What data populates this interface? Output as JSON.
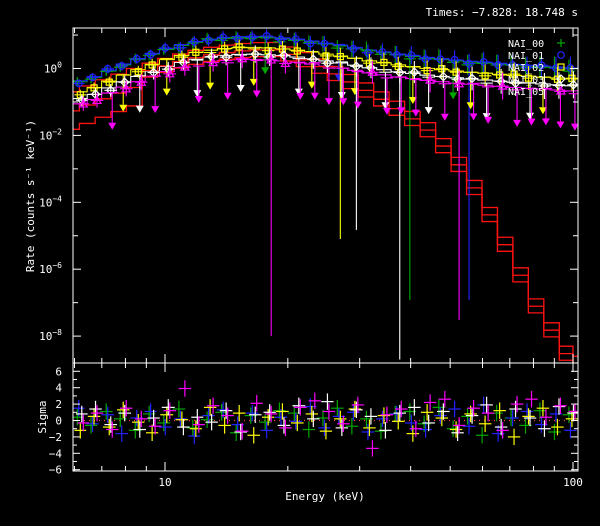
{
  "title": "Times: −7.828: 18.748 s",
  "legend": {
    "items": [
      {
        "label": "NAI_00",
        "marker": "plus",
        "color": "#00a800"
      },
      {
        "label": "NAI_01",
        "marker": "circle",
        "color": "#2222ff"
      },
      {
        "label": "NAI_02",
        "marker": "square",
        "color": "#ffff00"
      },
      {
        "label": "NAI_03",
        "marker": "diamond",
        "color": "#ffffff"
      },
      {
        "label": "NAI_05",
        "marker": "triangle",
        "color": "#ff00ff"
      }
    ]
  },
  "colors": {
    "frame": "#ffffff",
    "background": "#000000",
    "model_red": "#ff1212",
    "zero_line": "#ff4040"
  },
  "chart_data": [
    {
      "type": "scatter",
      "title": "",
      "xlabel": "Energy (keV)",
      "ylabel": "Rate (counts s⁻¹ keV⁻¹)",
      "xscale": "log",
      "yscale": "log",
      "xlim": [
        5.9,
        103.4
      ],
      "ylim": [
        2.5e-10,
        16
      ],
      "grid": false,
      "xticks_major": [
        10,
        100
      ],
      "xticks_minor": [
        6,
        7,
        8,
        9,
        20,
        30,
        40,
        50,
        60,
        70,
        80,
        90
      ],
      "ytick_exponents_labeled": [
        0,
        -2,
        -4,
        -6,
        -8
      ],
      "ytick_exponents_minor": [
        1,
        -1,
        -3,
        -5,
        -7
      ],
      "energies": [
        6.2,
        6.7,
        7.3,
        7.9,
        8.6,
        9.3,
        10.1,
        11.0,
        11.9,
        12.9,
        14.0,
        15.2,
        16.5,
        17.9,
        19.4,
        21.1,
        22.9,
        24.8,
        26.9,
        29.2,
        31.7,
        34.4,
        37.3,
        40.5,
        43.9,
        47.7,
        51.7,
        56.1,
        60.9,
        66.1,
        71.7,
        77.8,
        84.4,
        91.6,
        99.4
      ],
      "base_rate": [
        0.12,
        0.16,
        0.25,
        0.38,
        0.55,
        0.8,
        1.1,
        1.45,
        1.8,
        2.1,
        2.35,
        2.5,
        2.55,
        2.45,
        2.3,
        2.1,
        1.85,
        1.6,
        1.4,
        1.2,
        1.0,
        0.88,
        0.76,
        0.68,
        0.6,
        0.55,
        0.5,
        0.46,
        0.43,
        0.4,
        0.37,
        0.35,
        0.33,
        0.31,
        0.29
      ],
      "jitter_table": [
        1.08,
        0.94,
        1.02,
        0.9,
        1.12,
        0.97,
        1.05,
        0.88,
        1.0,
        1.15,
        0.92,
        1.04,
        0.96,
        1.1,
        0.85,
        1.03,
        0.98,
        1.07,
        0.91,
        1.0,
        1.12,
        0.94,
        1.06,
        0.89,
        1.02,
        1.1,
        0.95,
        0.87,
        1.04,
        0.99,
        1.08,
        0.93,
        1.01,
        1.06,
        0.9
      ],
      "detectors": [
        {
          "name": "NAI_00",
          "color": "#00a800",
          "marker": "plus",
          "scale": 3.2,
          "jitter_offset": 0,
          "dx": -3,
          "ebar": 4,
          "upper_limits": [
            13,
            26
          ],
          "deep_error_bars": [
            {
              "ch": 23,
              "to_rate": 1.2e-07
            }
          ]
        },
        {
          "name": "NAI_01",
          "color": "#2222ff",
          "marker": "circle",
          "scale": 3.4,
          "jitter_offset": 7,
          "dx": -1.5,
          "ebar": 4,
          "upper_limits": [
            18
          ],
          "deep_error_bars": [
            {
              "ch": 27,
              "to_rate": 1.2e-07
            }
          ]
        },
        {
          "name": "NAI_02",
          "color": "#ffff00",
          "marker": "square",
          "scale": 1.6,
          "jitter_offset": 14,
          "dx": 0,
          "ebar": 5,
          "upper_limits": [
            3,
            6,
            9,
            12,
            16,
            19,
            23,
            27,
            32
          ],
          "deep_error_bars": [
            {
              "ch": 18,
              "to_rate": 8e-06
            }
          ]
        },
        {
          "name": "NAI_03",
          "color": "#ffffff",
          "marker": "diamond",
          "scale": 1.0,
          "jitter_offset": 21,
          "dx": 1.5,
          "ebar": 6,
          "upper_limits": [
            4,
            8,
            11,
            15,
            18,
            21,
            24,
            28,
            31
          ],
          "deep_error_bars": [
            {
              "ch": 19,
              "to_rate": 1.5e-05
            },
            {
              "ch": 22,
              "to_rate": 2e-09
            }
          ]
        },
        {
          "name": "NAI_05",
          "color": "#ff00ff",
          "marker": "triangle",
          "scale": 0.7,
          "jitter_offset": 28,
          "dx": 3,
          "ebar": 7,
          "upper_limits": [
            2,
            5,
            8,
            10,
            12,
            15,
            16,
            17,
            18,
            19,
            21,
            22,
            23,
            25,
            27,
            28,
            30,
            31,
            32,
            33,
            34
          ],
          "deep_error_bars": [
            {
              "ch": 13,
              "to_rate": 1e-08
            },
            {
              "ch": 26,
              "to_rate": 3e-08
            }
          ]
        }
      ],
      "model": {
        "color": "#ff1212",
        "low_e_threshold": 9,
        "colored_line_factor": 1.05,
        "base": [
          [
            5.9,
            0.2
          ],
          [
            6.45,
            0.3
          ],
          [
            7.05,
            0.46
          ],
          [
            7.7,
            0.68
          ],
          [
            8.4,
            1.0
          ],
          [
            9.2,
            1.45
          ],
          [
            10.0,
            2.0
          ],
          [
            10.9,
            2.7
          ],
          [
            11.9,
            3.5
          ],
          [
            13.0,
            4.3
          ],
          [
            14.2,
            5.0
          ],
          [
            15.5,
            5.6
          ],
          [
            16.9,
            5.95
          ],
          [
            18.4,
            6.0
          ],
          [
            20.1,
            4.4
          ],
          [
            21.9,
            3.0
          ],
          [
            23.9,
            1.9
          ],
          [
            26.1,
            1.15
          ],
          [
            28.5,
            0.66
          ],
          [
            31.1,
            0.37
          ],
          [
            33.9,
            0.2
          ],
          [
            37.0,
            0.105
          ],
          [
            40.4,
            0.052
          ],
          [
            44.1,
            0.024
          ],
          [
            48.1,
            0.008
          ],
          [
            52.5,
            0.0022
          ],
          [
            57.3,
            0.00045
          ],
          [
            62.5,
            7e-05
          ],
          [
            68.2,
            9e-06
          ],
          [
            74.4,
            1.1e-06
          ],
          [
            81.2,
            1.3e-07
          ],
          [
            88.6,
            2.5e-08
          ],
          [
            96.7,
            5e-09
          ],
          [
            103.4,
            2.5e-09
          ]
        ],
        "lines": [
          {
            "scale": 1.0,
            "low_e_factor": 1.0
          },
          {
            "scale": 0.6,
            "low_e_factor": 0.45
          },
          {
            "scale": 0.38,
            "low_e_factor": 0.2
          }
        ]
      }
    },
    {
      "type": "scatter",
      "ylabel": "Sigma",
      "ylim": [
        -6.5,
        6.9
      ],
      "yticks_labeled": [
        -6,
        -4,
        -2,
        0,
        2,
        4,
        6
      ],
      "zero_line": true,
      "series": [
        {
          "name": "NAI_00",
          "color": "#00a800",
          "values": [
            0.4,
            -0.6,
            1.1,
            0.2,
            -1.2,
            0.8,
            -0.3,
            1.4,
            -0.9,
            0.1,
            1.0,
            -1.5,
            0.6,
            -0.2,
            1.2,
            0.9,
            -1.1,
            0.3,
            1.5,
            -0.7,
            0.2,
            -1.3,
            0.8,
            1.1,
            -0.4,
            1.6,
            -1.0,
            0.5,
            -1.8,
            0.9,
            0.3,
            -0.6,
            1.2,
            -1.4,
            0.7
          ]
        },
        {
          "name": "NAI_01",
          "color": "#2222ff",
          "values": [
            1.5,
            -0.4,
            0.7,
            -1.6,
            0.3,
            1.1,
            -0.8,
            0.2,
            -1.9,
            0.6,
            1.3,
            -0.5,
            0.9,
            -1.2,
            0.4,
            -0.1,
            1.7,
            -0.9,
            0.5,
            1.0,
            -1.4,
            0.2,
            0.8,
            -0.3,
            -1.1,
            0.6,
            1.4,
            -0.7,
            1.9,
            -1.6,
            0.3,
            1.1,
            -0.5,
            0.8,
            -1.2
          ]
        },
        {
          "name": "NAI_02",
          "color": "#ffff00",
          "values": [
            -1.2,
            0.5,
            -0.8,
            1.3,
            -0.2,
            -1.5,
            0.7,
            0.1,
            -1.0,
            1.6,
            -0.6,
            0.9,
            -1.8,
            0.4,
            1.1,
            -0.3,
            0.8,
            -1.3,
            0.2,
            1.4,
            -0.9,
            0.6,
            -0.1,
            -1.6,
            1.0,
            0.3,
            -1.1,
            0.8,
            -0.4,
            1.2,
            -2.0,
            0.5,
            1.5,
            -0.8,
            0.2
          ]
        },
        {
          "name": "NAI_03",
          "color": "#ffffff",
          "values": [
            0.8,
            1.4,
            -0.5,
            0.9,
            -1.1,
            0.3,
            1.6,
            -0.8,
            0.4,
            -0.2,
            1.2,
            -1.4,
            0.7,
            1.0,
            -0.6,
            1.8,
            0.2,
            2.3,
            -0.9,
            1.3,
            0.5,
            -1.2,
            0.9,
            1.6,
            -0.3,
            1.1,
            -1.5,
            0.6,
            1.9,
            -0.8,
            1.4,
            0.3,
            -1.0,
            1.7,
            0.9
          ]
        },
        {
          "name": "NAI_05",
          "color": "#ff00ff",
          "values": [
            -0.3,
            0.9,
            -1.1,
            1.5,
            0.2,
            -0.7,
            1.2,
            3.9,
            -0.5,
            1.8,
            0.6,
            -1.3,
            2.1,
            0.8,
            -0.9,
            1.6,
            2.4,
            1.1,
            -0.4,
            1.9,
            -3.4,
            0.7,
            1.4,
            -1.0,
            2.2,
            2.6,
            -0.6,
            1.5,
            0.9,
            -1.2,
            2.0,
            2.6,
            0.4,
            1.8,
            1.1
          ]
        }
      ]
    }
  ]
}
